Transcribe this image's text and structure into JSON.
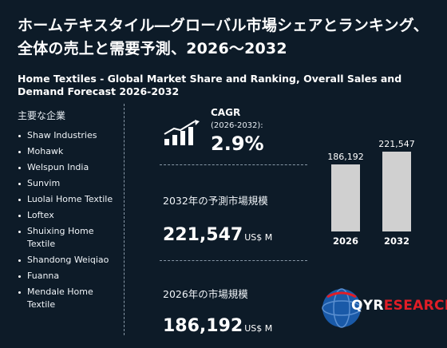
{
  "title_ja": "ホームテキスタイル―グローバル市場シェアとランキング、全体の売上と需要予測、2026～2032",
  "title_en": "Home Textiles - Global Market Share and Ranking, Overall Sales and Demand Forecast 2026-2032",
  "companies": {
    "heading": "主要な企業",
    "items": [
      "Shaw Industries",
      "Mohawk",
      "Welspun India",
      "Sunvim",
      "Luolai Home Textile",
      "Loftex",
      "Shuixing Home Textile",
      "Shandong Weiqiao",
      "Fuanna",
      "Mendale Home Textile"
    ]
  },
  "cagr": {
    "label": "CAGR",
    "period": "(2026-2032):",
    "value": "2.9%",
    "icon": "growth-bar-chart-icon"
  },
  "forecast_2032": {
    "label": "2032年の予測市場規模",
    "value": "221,547",
    "unit": "US$ M"
  },
  "market_2026": {
    "label": "2026年の市場規模",
    "value": "186,192",
    "unit": "US$ M"
  },
  "chart_data": {
    "type": "bar",
    "categories": [
      "2026",
      "2032"
    ],
    "values": [
      186192,
      221547
    ],
    "value_labels": [
      "186,192",
      "221,547"
    ],
    "color": "#d0d0d0"
  },
  "logo": {
    "q_part": "QYR",
    "r_part": "ESEARCH",
    "icon": "globe-icon"
  },
  "colors": {
    "background": "#0d1b28",
    "text": "#ffffff",
    "bar": "#d0d0d0",
    "brand_red": "#e11d26",
    "brand_blue": "#1a5aa8"
  }
}
